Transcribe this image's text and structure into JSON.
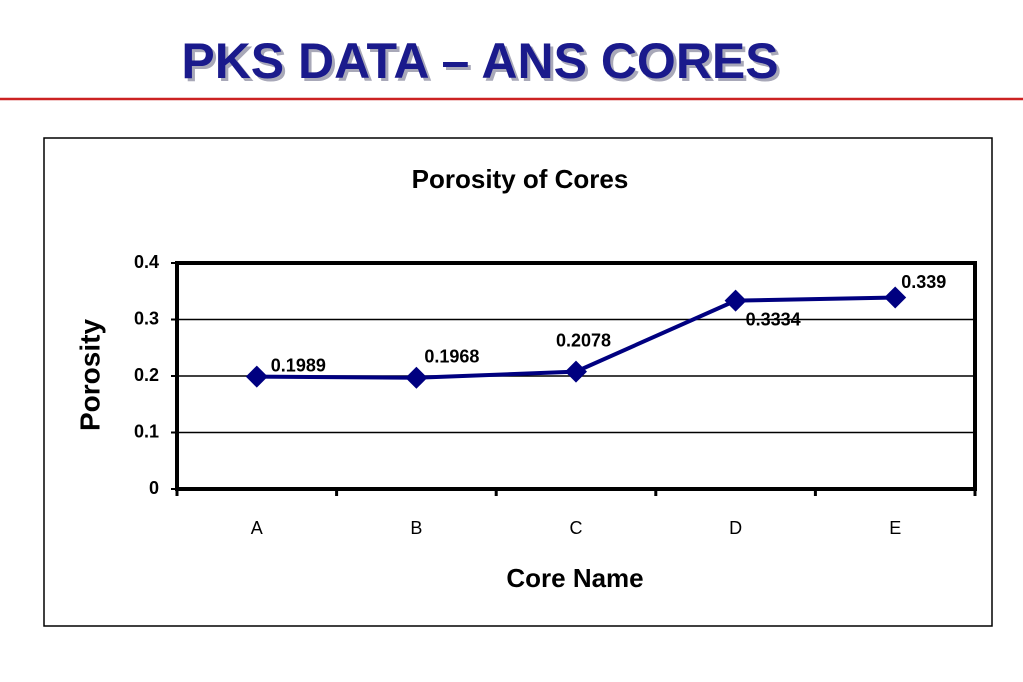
{
  "slide_title": "PKS DATA – ANS CORES",
  "chart_data": {
    "type": "line",
    "title": "Porosity of Cores",
    "x_label": "Core Name",
    "y_label": "Porosity",
    "categories": [
      "A",
      "B",
      "C",
      "D",
      "E"
    ],
    "values": [
      0.1989,
      0.1968,
      0.2078,
      0.3334,
      0.339
    ],
    "color": "#000080",
    "ylim": [
      0,
      0.4
    ],
    "yticks": [
      0,
      0.1,
      0.2,
      0.3,
      0.4
    ],
    "grid": true
  }
}
